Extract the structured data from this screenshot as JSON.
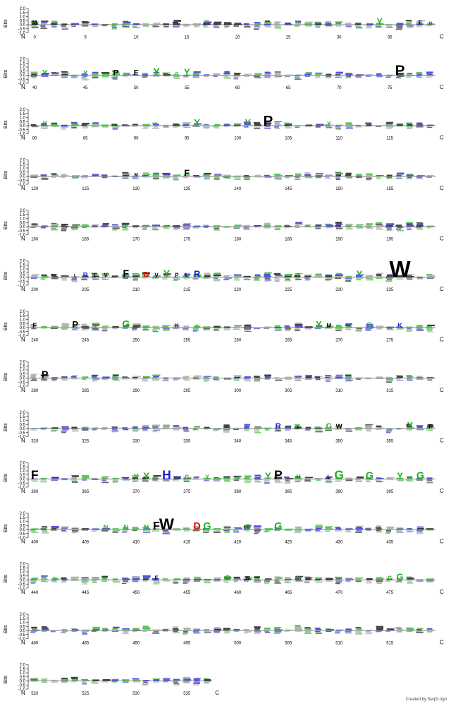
{
  "chart_data": {
    "type": "sequence-logo",
    "ylabel": "Bits",
    "y_ticks": [
      "2.0",
      "1.5",
      "1.0",
      "0.5",
      "0.0",
      "-0.5",
      "-1.0"
    ],
    "ylim": [
      -1.0,
      2.0
    ],
    "start_label": "N",
    "end_label": "C",
    "positions_per_row": 40,
    "tick_step": 5,
    "total_positions": 538,
    "rows": [
      {
        "start": 0,
        "ticks": [
          "0",
          "5",
          "10",
          "15",
          "20",
          "25",
          "30",
          "35"
        ]
      },
      {
        "start": 40,
        "ticks": [
          "40",
          "45",
          "50",
          "55",
          "60",
          "65",
          "70",
          "75"
        ]
      },
      {
        "start": 80,
        "ticks": [
          "80",
          "85",
          "90",
          "95",
          "100",
          "105",
          "110",
          "115"
        ]
      },
      {
        "start": 120,
        "ticks": [
          "120",
          "125",
          "130",
          "135",
          "140",
          "145",
          "150",
          "155"
        ]
      },
      {
        "start": 160,
        "ticks": [
          "160",
          "165",
          "170",
          "175",
          "180",
          "185",
          "190",
          "195"
        ]
      },
      {
        "start": 200,
        "ticks": [
          "200",
          "205",
          "210",
          "215",
          "220",
          "225",
          "230",
          "235"
        ]
      },
      {
        "start": 240,
        "ticks": [
          "240",
          "245",
          "250",
          "255",
          "260",
          "265",
          "270",
          "275"
        ]
      },
      {
        "start": 280,
        "ticks": [
          "280",
          "285",
          "290",
          "295",
          "300",
          "305",
          "310",
          "315"
        ]
      },
      {
        "start": 320,
        "ticks": [
          "320",
          "325",
          "330",
          "335",
          "340",
          "345",
          "350",
          "355"
        ]
      },
      {
        "start": 360,
        "ticks": [
          "360",
          "365",
          "370",
          "375",
          "380",
          "385",
          "390",
          "395"
        ]
      },
      {
        "start": 400,
        "ticks": [
          "400",
          "405",
          "410",
          "415",
          "420",
          "425",
          "430",
          "435"
        ]
      },
      {
        "start": 440,
        "ticks": [
          "440",
          "445",
          "450",
          "455",
          "460",
          "465",
          "470",
          "475"
        ]
      },
      {
        "start": 480,
        "ticks": [
          "480",
          "485",
          "490",
          "495",
          "500",
          "505",
          "510",
          "515"
        ]
      },
      {
        "start": 520,
        "ticks": [
          "520",
          "525",
          "530",
          "535"
        ]
      }
    ],
    "prominent_letters": [
      {
        "pos": 0,
        "letter": "M",
        "bits": 0.5
      },
      {
        "pos": 34,
        "letter": "Y",
        "bits": 0.8
      },
      {
        "pos": 38,
        "letter": "F",
        "bits": 0.5
      },
      {
        "pos": 39,
        "letter": "H",
        "bits": 0.4
      },
      {
        "pos": 41,
        "letter": "Y",
        "bits": 0.7
      },
      {
        "pos": 45,
        "letter": "Y",
        "bits": 0.6
      },
      {
        "pos": 48,
        "letter": "P",
        "bits": 0.7
      },
      {
        "pos": 50,
        "letter": "F",
        "bits": 0.7
      },
      {
        "pos": 52,
        "letter": "Y",
        "bits": 0.9
      },
      {
        "pos": 54,
        "letter": "G",
        "bits": 0.4
      },
      {
        "pos": 55,
        "letter": "Y",
        "bits": 0.8
      },
      {
        "pos": 76,
        "letter": "P",
        "bits": 1.3
      },
      {
        "pos": 81,
        "letter": "Y",
        "bits": 0.6
      },
      {
        "pos": 96,
        "letter": "Y",
        "bits": 0.8
      },
      {
        "pos": 101,
        "letter": "Y",
        "bits": 0.8
      },
      {
        "pos": 103,
        "letter": "P",
        "bits": 1.3
      },
      {
        "pos": 109,
        "letter": "Y",
        "bits": 0.5
      },
      {
        "pos": 130,
        "letter": "M",
        "bits": 0.4
      },
      {
        "pos": 135,
        "letter": "F",
        "bits": 0.8
      },
      {
        "pos": 204,
        "letter": "L",
        "bits": 0.4
      },
      {
        "pos": 205,
        "letter": "R",
        "bits": 0.6
      },
      {
        "pos": 206,
        "letter": "L",
        "bits": 0.5
      },
      {
        "pos": 207,
        "letter": "V",
        "bits": 0.5
      },
      {
        "pos": 209,
        "letter": "F",
        "bits": 0.9
      },
      {
        "pos": 211,
        "letter": "D",
        "bits": 0.7
      },
      {
        "pos": 212,
        "letter": "V",
        "bits": 0.5
      },
      {
        "pos": 213,
        "letter": "Y",
        "bits": 0.9
      },
      {
        "pos": 214,
        "letter": "P",
        "bits": 0.5
      },
      {
        "pos": 215,
        "letter": "L",
        "bits": 0.5
      },
      {
        "pos": 216,
        "letter": "R",
        "bits": 0.8
      },
      {
        "pos": 232,
        "letter": "Y",
        "bits": 0.8
      },
      {
        "pos": 236,
        "letter": "W",
        "bits": 2.0
      },
      {
        "pos": 240,
        "letter": "F",
        "bits": 0.6
      },
      {
        "pos": 244,
        "letter": "P",
        "bits": 0.8
      },
      {
        "pos": 246,
        "letter": "Y",
        "bits": 0.4
      },
      {
        "pos": 249,
        "letter": "G",
        "bits": 0.9
      },
      {
        "pos": 254,
        "letter": "K",
        "bits": 0.5
      },
      {
        "pos": 256,
        "letter": "G",
        "bits": 0.4
      },
      {
        "pos": 268,
        "letter": "Y",
        "bits": 0.8
      },
      {
        "pos": 269,
        "letter": "M",
        "bits": 0.5
      },
      {
        "pos": 273,
        "letter": "G",
        "bits": 0.7
      },
      {
        "pos": 276,
        "letter": "K",
        "bits": 0.6
      },
      {
        "pos": 281,
        "letter": "P",
        "bits": 0.9
      },
      {
        "pos": 286,
        "letter": "Y",
        "bits": 0.3
      },
      {
        "pos": 344,
        "letter": "R",
        "bits": 0.7
      },
      {
        "pos": 346,
        "letter": "L",
        "bits": 0.4
      },
      {
        "pos": 349,
        "letter": "G",
        "bits": 0.7
      },
      {
        "pos": 350,
        "letter": "W",
        "bits": 0.6
      },
      {
        "pos": 357,
        "letter": "Y",
        "bits": 0.8
      },
      {
        "pos": 359,
        "letter": "F",
        "bits": 0.5
      },
      {
        "pos": 360,
        "letter": "F",
        "bits": 1.1
      },
      {
        "pos": 370,
        "letter": "Y",
        "bits": 0.7
      },
      {
        "pos": 371,
        "letter": "Y",
        "bits": 0.8
      },
      {
        "pos": 373,
        "letter": "H",
        "bits": 1.1
      },
      {
        "pos": 375,
        "letter": "G",
        "bits": 0.5
      },
      {
        "pos": 377,
        "letter": "Y",
        "bits": 0.5
      },
      {
        "pos": 383,
        "letter": "Y",
        "bits": 0.8
      },
      {
        "pos": 384,
        "letter": "P",
        "bits": 1.1
      },
      {
        "pos": 386,
        "letter": "Y",
        "bits": 0.6
      },
      {
        "pos": 389,
        "letter": "L",
        "bits": 0.5
      },
      {
        "pos": 390,
        "letter": "G",
        "bits": 1.1
      },
      {
        "pos": 393,
        "letter": "G",
        "bits": 0.9
      },
      {
        "pos": 396,
        "letter": "Y",
        "bits": 0.8
      },
      {
        "pos": 398,
        "letter": "G",
        "bits": 0.9
      },
      {
        "pos": 407,
        "letter": "N",
        "bits": 0.6
      },
      {
        "pos": 409,
        "letter": "N",
        "bits": 0.6
      },
      {
        "pos": 411,
        "letter": "N",
        "bits": 0.6
      },
      {
        "pos": 412,
        "letter": "F",
        "bits": 1.0
      },
      {
        "pos": 413,
        "letter": "W",
        "bits": 1.4
      },
      {
        "pos": 416,
        "letter": "D",
        "bits": 0.9
      },
      {
        "pos": 417,
        "letter": "G",
        "bits": 0.9
      },
      {
        "pos": 421,
        "letter": "G",
        "bits": 0.7
      },
      {
        "pos": 424,
        "letter": "G",
        "bits": 0.9
      },
      {
        "pos": 442,
        "letter": "N",
        "bits": 0.4
      },
      {
        "pos": 452,
        "letter": "F",
        "bits": 0.5
      },
      {
        "pos": 459,
        "letter": "G",
        "bits": 0.6
      },
      {
        "pos": 461,
        "letter": "W",
        "bits": 0.4
      },
      {
        "pos": 466,
        "letter": "N",
        "bits": 0.5
      },
      {
        "pos": 475,
        "letter": "G",
        "bits": 0.5
      },
      {
        "pos": 476,
        "letter": "G",
        "bits": 0.8
      }
    ],
    "credit": "Created by Seq2Logo"
  }
}
